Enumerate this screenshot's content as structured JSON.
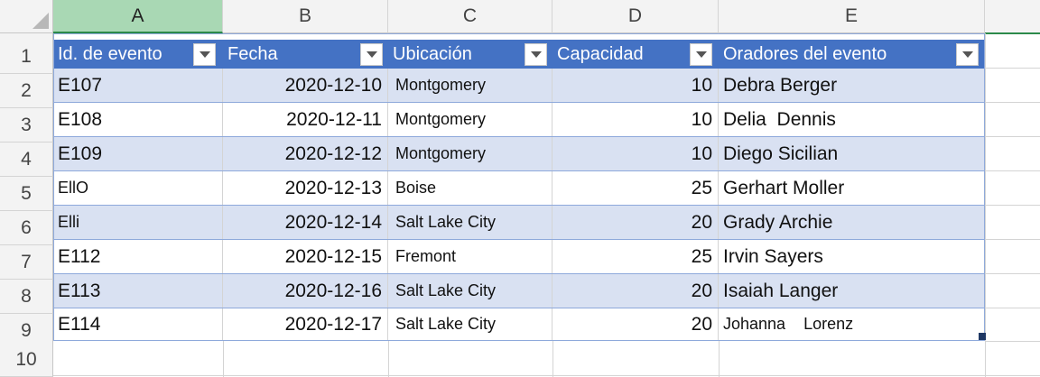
{
  "columns": [
    "A",
    "B",
    "C",
    "D",
    "E"
  ],
  "row_numbers": [
    "1",
    "2",
    "3",
    "4",
    "5",
    "6",
    "7",
    "8",
    "9",
    "10"
  ],
  "table": {
    "headers": [
      "Id. de evento",
      "Fecha",
      "Ubicación",
      "Capacidad",
      "Oradores del evento"
    ],
    "rows": [
      [
        "E107",
        "2020-12-10",
        "Montgomery",
        "10",
        "Debra Berger"
      ],
      [
        "E108",
        "2020-12-11",
        "Montgomery",
        "10",
        "Delia  Dennis"
      ],
      [
        "E109",
        "2020-12-12",
        "Montgomery",
        "10",
        "Diego Sicilian"
      ],
      [
        "EllO",
        "2020-12-13",
        "Boise",
        "25",
        "Gerhart Moller"
      ],
      [
        "Elli",
        "2020-12-14",
        "Salt Lake City",
        "20",
        "Grady Archie"
      ],
      [
        "E112",
        "2020-12-15",
        "Fremont",
        "25",
        "Irvin Sayers"
      ],
      [
        "E113",
        "2020-12-16",
        "Salt Lake City",
        "20",
        "Isaiah Langer"
      ],
      [
        "E114",
        "2020-12-17",
        "Salt Lake City",
        "20",
        "Johanna    Lorenz"
      ]
    ]
  },
  "colors": {
    "header_fill": "#4472c4",
    "band_fill": "#d9e1f2",
    "selected_column_header": "#a9d8b4"
  }
}
